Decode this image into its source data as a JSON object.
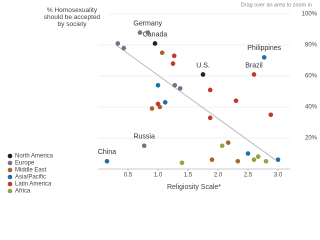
{
  "chart_data": {
    "type": "scatter",
    "title": "% Homosexuality should be accepted by society",
    "hint": "Drag over an area to zoom in",
    "x_label": "Religiosity Scale*",
    "xlim": [
      0,
      3.2
    ],
    "ylim": [
      0,
      100
    ],
    "xticks": [
      0.5,
      {
        "value": 1,
        "label": "1.0"
      },
      1.5,
      {
        "value": 2,
        "label": "2.0"
      },
      2.5,
      {
        "value": 3,
        "label": "3.0"
      }
    ],
    "yticks": [
      {
        "value": 20,
        "label": "20%"
      },
      {
        "value": 40,
        "label": "40%"
      },
      {
        "value": 60,
        "label": "60%"
      },
      {
        "value": 80,
        "label": "80%"
      },
      {
        "value": 100,
        "label": "100%"
      }
    ],
    "trendline": {
      "x": [
        0.3,
        2.95
      ],
      "y": [
        80,
        6
      ],
      "color": "#bbbbbb"
    },
    "series": [
      {
        "name": "North America",
        "color": "#222222",
        "x": [
          0.95,
          1.75
        ],
        "y": [
          81,
          61
        ],
        "labels": [
          "Canada",
          "U.S."
        ]
      },
      {
        "name": "Europe",
        "color": "#7b6f8f",
        "x": [
          0.33,
          0.43,
          0.7,
          0.83,
          1.28,
          1.37,
          0.77
        ],
        "y": [
          81,
          78,
          88,
          88,
          54,
          52,
          15
        ],
        "labels": [
          null,
          null,
          null,
          "Germany",
          null,
          null,
          "Russia"
        ]
      },
      {
        "name": "Middle East",
        "color": "#a8642a",
        "x": [
          1.07,
          1.03,
          0.9,
          2.17,
          2.33,
          1.9
        ],
        "y": [
          75,
          40,
          39,
          17,
          5,
          6
        ]
      },
      {
        "name": "Asia/Pacific",
        "color": "#1f6fa8",
        "x": [
          1.0,
          1.12,
          2.77,
          2.5,
          3.0,
          0.15
        ],
        "y": [
          54,
          43,
          72,
          10,
          6,
          5
        ],
        "labels": [
          null,
          null,
          "Philippines",
          null,
          null,
          "China"
        ]
      },
      {
        "name": "Latin America",
        "color": "#c0392b",
        "x": [
          1.27,
          1.25,
          1.0,
          1.87,
          2.3,
          1.87,
          2.6,
          2.88
        ],
        "y": [
          73,
          68,
          42,
          51,
          44,
          33,
          61,
          35
        ],
        "labels": [
          null,
          null,
          null,
          null,
          null,
          null,
          "Brazil",
          null
        ]
      },
      {
        "name": "Africa",
        "color": "#9aa04a",
        "x": [
          2.67,
          2.8,
          2.07,
          1.4,
          2.6
        ],
        "y": [
          8,
          5,
          15,
          4,
          6
        ]
      }
    ]
  }
}
